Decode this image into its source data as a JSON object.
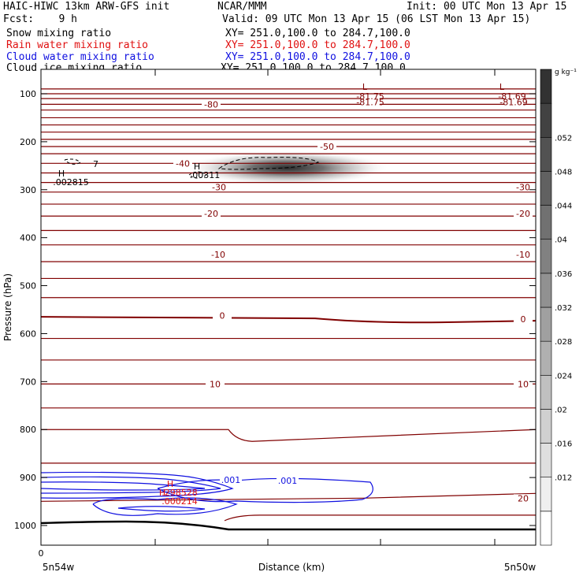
{
  "header": {
    "model": "HAIC-HIWC 13km ARW-GFS init",
    "center": "NCAR/MMM",
    "init": "Init: 00 UTC Mon 13 Apr 15",
    "fcst": "Fcst:    9 h",
    "valid": "Valid: 09 UTC Mon 13 Apr 15 (06 LST Mon 13 Apr 15)"
  },
  "fields": [
    {
      "label": "Snow mixing ratio",
      "xy": "XY= 251.0,100.0 to 284.7,100.0",
      "color": "#000000"
    },
    {
      "label": "Rain water mixing ratio",
      "xy": "XY= 251.0,100.0 to 284.7,100.0",
      "color": "#e01010"
    },
    {
      "label": "Cloud water mixing ratio",
      "xy": "XY= 251.0,100.0 to 284.7,100.0",
      "color": "#1010e0"
    },
    {
      "label": "Cloud ice mixing ratio",
      "xy": "XY= 251.0,100.0 to 284.7,100.0",
      "color": "#000000"
    }
  ],
  "chart_data": {
    "type": "heatmap",
    "xlabel": "Distance (km)",
    "ylabel": "Pressure (hPa)",
    "x_tick_labels": [
      "0"
    ],
    "x_end_labels": {
      "left": "5n54w",
      "right": "5n50w"
    },
    "y_ticks": [
      100,
      200,
      300,
      400,
      500,
      600,
      700,
      800,
      900,
      1000
    ],
    "ylim": [
      1050,
      80
    ],
    "colorbar": {
      "unit": "g kg⁻¹",
      "ticks": [
        ".012",
        ".016",
        ".02",
        ".024",
        ".028",
        ".032",
        ".036",
        ".04",
        ".044",
        ".048",
        ".052"
      ],
      "levels": [
        0.004,
        0.008,
        0.012,
        0.016,
        0.02,
        0.024,
        0.028,
        0.032,
        0.036,
        0.04,
        0.044,
        0.048,
        0.052,
        0.056
      ]
    },
    "temperature_labels": [
      {
        "text": "-81.75",
        "p": 117,
        "side": "center"
      },
      {
        "text": "-81.69",
        "p": 117,
        "side": "right"
      },
      {
        "text": "-80",
        "p": 122,
        "side": "left"
      },
      {
        "text": "-50",
        "p": 210,
        "side": "center"
      },
      {
        "text": "-40",
        "p": 245,
        "side": "left"
      },
      {
        "text": "-30",
        "p": 295,
        "side": "left"
      },
      {
        "text": "-30",
        "p": 295,
        "side": "right"
      },
      {
        "text": "-20",
        "p": 350,
        "side": "left"
      },
      {
        "text": "-20",
        "p": 350,
        "side": "right"
      },
      {
        "text": "-10",
        "p": 435,
        "side": "left"
      },
      {
        "text": "-10",
        "p": 435,
        "side": "right"
      },
      {
        "text": "0",
        "p": 562,
        "side": "left"
      },
      {
        "text": "0",
        "p": 570,
        "side": "right"
      },
      {
        "text": "10",
        "p": 705,
        "side": "left"
      },
      {
        "text": "10",
        "p": 705,
        "side": "right"
      },
      {
        "text": "20",
        "p": 943,
        "side": "right"
      }
    ],
    "highs_lows": [
      {
        "mark": "L",
        "value": "-81.75",
        "color": "#800000"
      },
      {
        "mark": "L",
        "value": "-81.69",
        "color": "#800000"
      },
      {
        "mark": "H",
        "value": ".002815",
        "color": "#000000"
      },
      {
        "mark": "H",
        "value": ".00311",
        "color": "#000000"
      },
      {
        "mark": "H",
        "value": ".298528",
        "color": "#e01010"
      },
      {
        "mark": "H",
        "value": ".000214",
        "color": "#e01010"
      }
    ],
    "cloud_water_labels": [
      ".001",
      ".001"
    ],
    "cloud_ice_label": "7",
    "snow_max": {
      "p": 258,
      "value": 0.056
    }
  },
  "colors": {
    "temperature": "#800000",
    "cloud_water": "#1010e0",
    "rain": "#e01010",
    "terrain": "#000000"
  }
}
